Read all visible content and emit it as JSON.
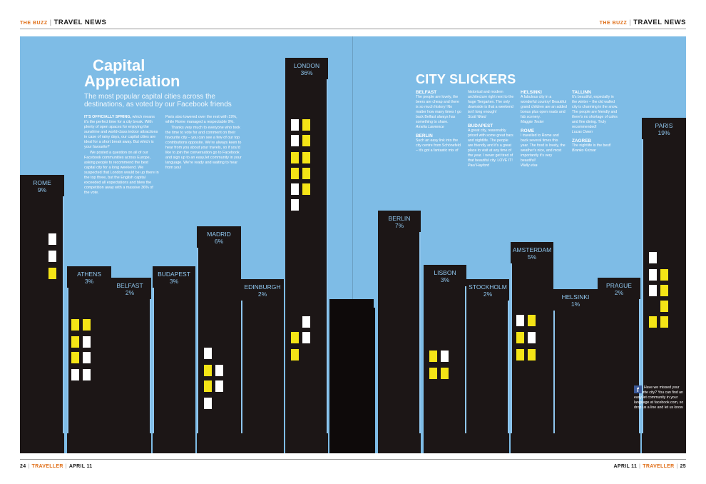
{
  "header": {
    "left": {
      "section": "THE BUZZ",
      "title": "TRAVEL NEWS"
    },
    "right": {
      "section": "THE BUZZ",
      "title": "TRAVEL NEWS"
    }
  },
  "footer": {
    "left": {
      "page": "24",
      "magazine": "TRAVELLER",
      "issue": "APRIL 11"
    },
    "right": {
      "page": "25",
      "magazine": "TRAVELLER",
      "issue": "APRIL 11"
    }
  },
  "article": {
    "title_line1": "Capital",
    "title_line2": "Appreciation",
    "subtitle": "The most popular capital cities across the destinations, as voted by our Facebook friends",
    "col1_lead": "IT'S OFFICIALLY SPRING,",
    "col1_p1": " which means it's the perfect time for a city break. With plenty of open spaces for enjoying the sunshine and world-class indoor attractions in case of rainy days, our capital cities are ideal for a short break away. But which is your favourite?",
    "col1_p2": "We posted a question on all of our Facebook communities across Europe, asking people to recommend the best capital city for a long weekend. We suspected that London would be up there in the top three, but the English capital exceeded all expectations and blew the competition away with a massive 36% of the vote.",
    "col2_p1": "Paris also towered over the rest with 19%, while Rome managed a respectable 9%.",
    "col2_p2": "Thanks very much to everyone who took the time to vote for and comment on their favourite city – you can see a few of our top contributions opposite. We're always keen to hear from you about your travels, so if you'd like to join the conversation go to Facebook and sign up to an easyJet community in your language. We're ready and waiting to hear from you!"
  },
  "city_slickers": {
    "title": "CITY SLICKERS",
    "col1": [
      {
        "city": "BELFAST",
        "quote": "The people are lovely, the beers are cheap and there is so much history! No matter how many times I go back Belfast always has something to share.",
        "name": "Amelia Lawrence"
      },
      {
        "city": "BERLIN",
        "quote": "Such an easy link into the city centre from Schönefeld – it's got a fantastic mix of"
      }
    ],
    "col2": [
      {
        "city": "",
        "quote": "historical and modern architecture right next to the huge Tiergarten. The only downside is that a weekend isn't long enough!",
        "name": "Scott Ward"
      },
      {
        "city": "BUDAPEST",
        "quote": "A great city, reasonably priced with some great bars and nightlife. The people are friendly and it's a great place to visit at any time of the year. I never get tired of that beautiful city. LOVE IT!",
        "name": "Paul Hayford"
      }
    ],
    "col3": [
      {
        "city": "HELSINKI",
        "quote": "A fabulous city in a wonderful country! Beautiful grand children are an added bonus plus open roads and fab scenery.",
        "name": "Maggie Tester"
      },
      {
        "city": "ROME",
        "quote": "I travelled to Rome and back several times this year. The food is lovely, the weather's nice, and most importantly it's very beautiful!",
        "name": "Wally elsa"
      }
    ],
    "col4": [
      {
        "city": "TALLINN",
        "quote": "It's beautiful, especially in the winter – the old walled city is charming in the snow. The people are friendly and there's no shortage of cafes and fine dining. Truly recommended!",
        "name": "Lucas Owen"
      },
      {
        "city": "ZAGREB",
        "quote": "The nightlife is the best!",
        "name": "Branko Krizsar"
      }
    ]
  },
  "facebook_box": {
    "icon": "facebook-icon",
    "text": "Have we missed your favourite city? You can find an easyJet community in your language at facebook.com, so drop us a line and let us know"
  },
  "chart_data": {
    "type": "bar",
    "categories": [
      "ROME",
      "ATHENS",
      "BELFAST",
      "BUDAPEST",
      "MADRID",
      "EDINBURGH",
      "LONDON",
      "BERLIN",
      "LISBON",
      "STOCKHOLM",
      "AMSTERDAM",
      "HELSINKI",
      "PRAGUE",
      "PARIS"
    ],
    "values": [
      9,
      3,
      2,
      3,
      6,
      2,
      36,
      7,
      3,
      2,
      5,
      1,
      2,
      19
    ],
    "value_labels": [
      "9%",
      "3%",
      "2%",
      "3%",
      "6%",
      "2%",
      "36%",
      "7%",
      "3%",
      "2%",
      "5%",
      "1%",
      "2%",
      "19%"
    ],
    "title": "",
    "colors": {
      "sky": "#7ebce6",
      "building": "#1c1616",
      "label": "#8fc6ee",
      "window_white": "#ffffff",
      "window_yellow": "#f4e416"
    }
  }
}
